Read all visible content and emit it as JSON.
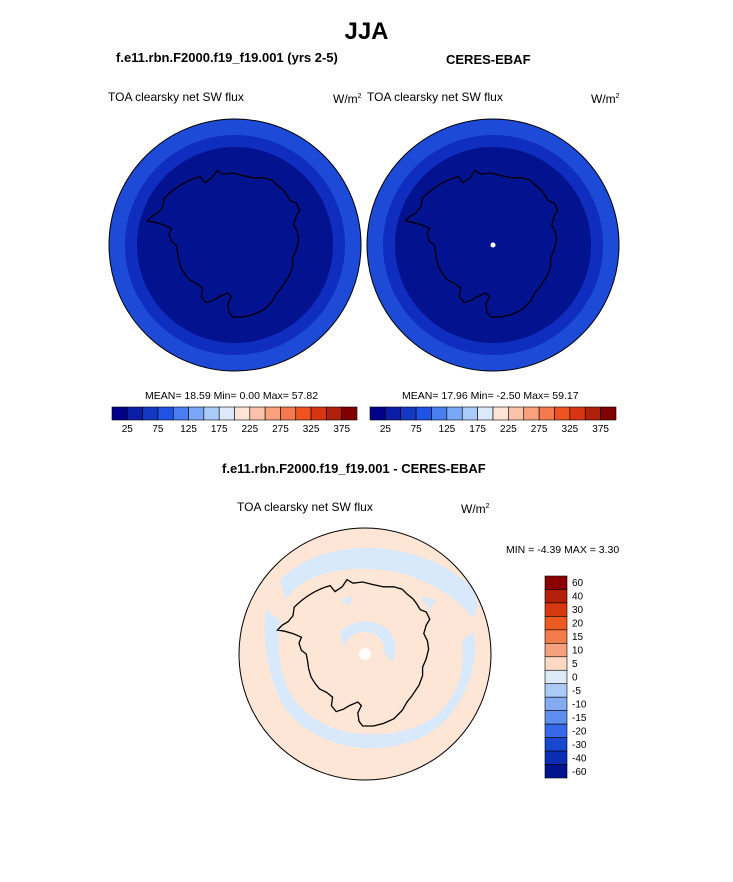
{
  "season": "JJA",
  "left_panel": {
    "case": "f.e11.rbn.F2000.f19_f19.001 (yrs 2-5)",
    "variable": "TOA clearsky net SW flux",
    "units_base": "W/m",
    "units_exp": "2",
    "stats": "MEAN=  18.59  Min=   0.00  Max=  57.82"
  },
  "right_panel": {
    "case": "CERES-EBAF",
    "variable": "TOA clearsky net SW flux",
    "units_base": "W/m",
    "units_exp": "2",
    "stats": "MEAN=  17.96  Min=  -2.50  Max=  59.17"
  },
  "diff_panel": {
    "title": "f.e11.rbn.F2000.f19_f19.001 - CERES-EBAF",
    "variable": "TOA clearsky net SW flux",
    "units_base": "W/m",
    "units_exp": "2",
    "minmax": "MIN =  -4.39 MAX =   3.30"
  },
  "abs_colorbar": {
    "colors": [
      "#00008b",
      "#0b1ea6",
      "#1238c4",
      "#2052e6",
      "#4a7ef0",
      "#7aa7f7",
      "#aacbf8",
      "#dce9fb",
      "#fde5d6",
      "#fbc4aa",
      "#f9a07c",
      "#f57a4d",
      "#ee5320",
      "#d73510",
      "#b0200a",
      "#800000"
    ],
    "ticks": [
      "25",
      "75",
      "125",
      "175",
      "225",
      "275",
      "325",
      "375"
    ]
  },
  "diff_colorbar": {
    "colors": [
      "#8b0000",
      "#b4200a",
      "#d7380f",
      "#ec5a20",
      "#f27c4a",
      "#f5a07e",
      "#fcd9c4",
      "#ddebf9",
      "#abcaf5",
      "#84abf2",
      "#5e8eee",
      "#3569ea",
      "#1848d2",
      "#0b2db3",
      "#00128c"
    ],
    "ticks": [
      "60",
      "40",
      "30",
      "20",
      "15",
      "10",
      "5",
      "0",
      "-5",
      "-10",
      "-15",
      "-20",
      "-30",
      "-40",
      "-60"
    ]
  },
  "map_colors": {
    "outer_ring": "#1e4ad8",
    "mid_ring": "#0f2ec0",
    "interior": "#03128f",
    "diff_background": "#fde6d6",
    "diff_negative": "#d8e9fb",
    "pole_missing": "#ffffff"
  }
}
